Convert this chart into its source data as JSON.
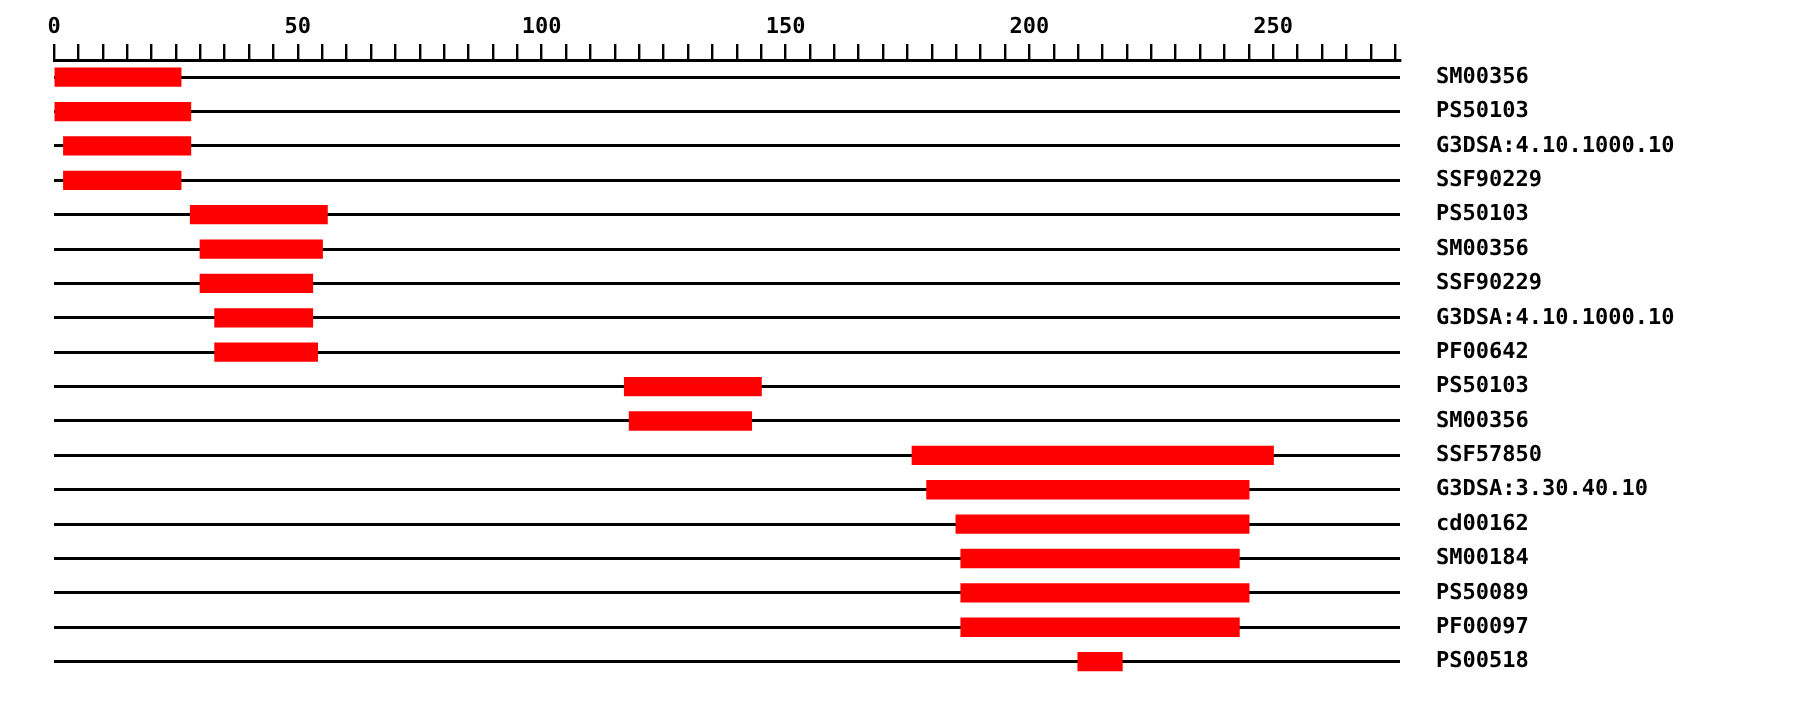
{
  "chart_data": {
    "type": "bar",
    "orientation": "horizontal",
    "categories": [
      "SM00356",
      "PS50103",
      "G3DSA:4.10.1000.10",
      "SSF90229",
      "PS50103",
      "SM00356",
      "SSF90229",
      "G3DSA:4.10.1000.10",
      "PF00642",
      "PS50103",
      "SM00356",
      "SSF57850",
      "G3DSA:3.30.40.10",
      "cd00162",
      "SM00184",
      "PS50089",
      "PF00097",
      "PS00518"
    ],
    "base": [
      0,
      0,
      2,
      2,
      28,
      30,
      30,
      33,
      33,
      117,
      118,
      176,
      179,
      185,
      186,
      186,
      186,
      210
    ],
    "values": [
      26,
      28,
      26,
      24,
      28,
      25,
      23,
      20,
      21,
      28,
      25,
      74,
      66,
      60,
      57,
      59,
      57,
      9
    ],
    "color": "#ff0000",
    "xlim": [
      0,
      276
    ],
    "xticks": [
      0,
      {
        "value": 5,
        "label": null
      },
      {
        "value": 10,
        "label": null
      },
      {
        "value": 15,
        "label": null
      },
      {
        "value": 20,
        "label": null
      },
      {
        "value": 25,
        "label": null
      },
      {
        "value": 30,
        "label": null
      },
      {
        "value": 35,
        "label": null
      },
      {
        "value": 40,
        "label": null
      },
      {
        "value": 45,
        "label": null
      },
      50,
      {
        "value": 55,
        "label": null
      },
      {
        "value": 60,
        "label": null
      },
      {
        "value": 65,
        "label": null
      },
      {
        "value": 70,
        "label": null
      },
      {
        "value": 75,
        "label": null
      },
      {
        "value": 80,
        "label": null
      },
      {
        "value": 85,
        "label": null
      },
      {
        "value": 90,
        "label": null
      },
      {
        "value": 95,
        "label": null
      },
      100,
      {
        "value": 105,
        "label": null
      },
      {
        "value": 110,
        "label": null
      },
      {
        "value": 115,
        "label": null
      },
      {
        "value": 120,
        "label": null
      },
      {
        "value": 125,
        "label": null
      },
      {
        "value": 130,
        "label": null
      },
      {
        "value": 135,
        "label": null
      },
      {
        "value": 140,
        "label": null
      },
      {
        "value": 145,
        "label": null
      },
      150,
      {
        "value": 155,
        "label": null
      },
      {
        "value": 160,
        "label": null
      },
      {
        "value": 165,
        "label": null
      },
      {
        "value": 170,
        "label": null
      },
      {
        "value": 175,
        "label": null
      },
      {
        "value": 180,
        "label": null
      },
      {
        "value": 185,
        "label": null
      },
      {
        "value": 190,
        "label": null
      },
      {
        "value": 195,
        "label": null
      },
      200,
      {
        "value": 205,
        "label": null
      },
      {
        "value": 210,
        "label": null
      },
      {
        "value": 215,
        "label": null
      },
      {
        "value": 220,
        "label": null
      },
      {
        "value": 225,
        "label": null
      },
      {
        "value": 230,
        "label": null
      },
      {
        "value": 235,
        "label": null
      },
      {
        "value": 240,
        "label": null
      },
      {
        "value": 245,
        "label": null
      },
      250,
      {
        "value": 255,
        "label": null
      },
      {
        "value": 260,
        "label": null
      },
      {
        "value": 265,
        "label": null
      },
      {
        "value": 270,
        "label": null
      },
      {
        "value": 275,
        "label": null
      }
    ],
    "grid": "y",
    "legend": false
  }
}
